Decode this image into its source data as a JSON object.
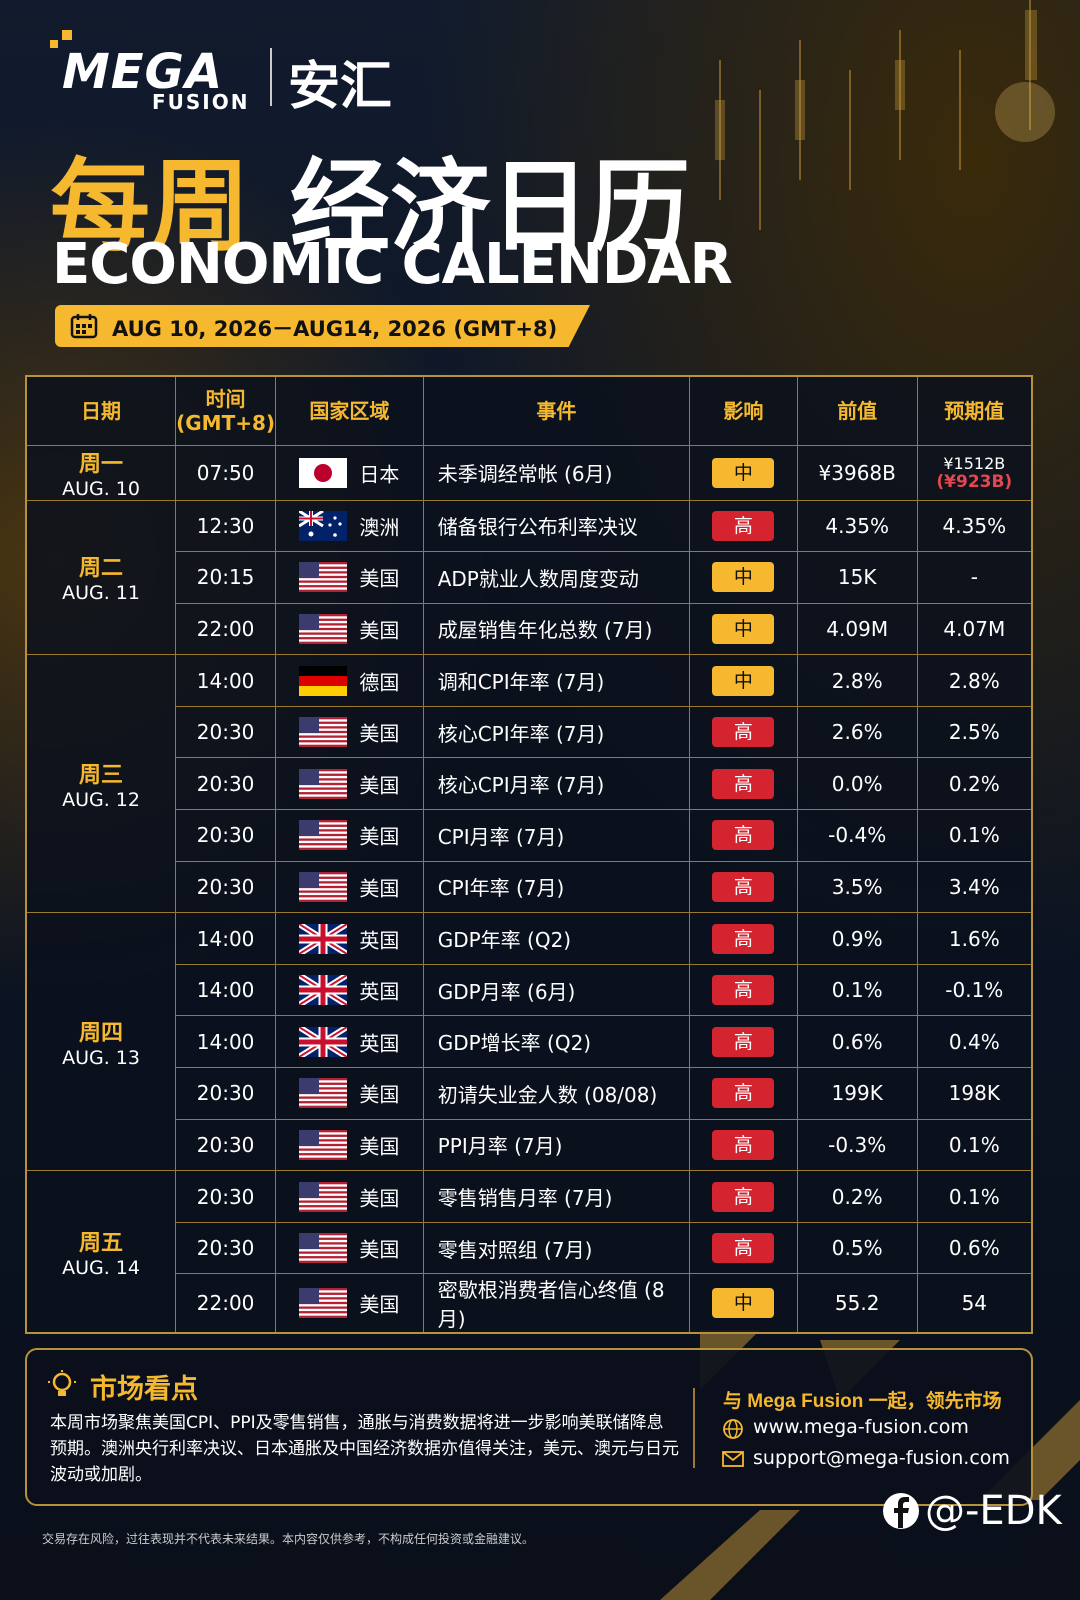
{
  "logo": {
    "brand": "MEGA",
    "sub": "FUSION",
    "cn": "安汇"
  },
  "title": {
    "highlight": "每周",
    "main": "经济日历",
    "english": "ECONOMIC CALENDAR",
    "date_range": "AUG 10, 2026－AUG14, 2026 (GMT+8)"
  },
  "table": {
    "columns": [
      "日期",
      "时间",
      "国家区域",
      "事件",
      "影响",
      "前值",
      "预期值"
    ],
    "time_zone": "(GMT+8)",
    "days": [
      {
        "day": "周一",
        "date": "AUG. 10",
        "events": [
          {
            "time": "07:50",
            "country": "日本",
            "event": "未季调经常帐 (6月)",
            "impact": "中",
            "impact_color": "#f5b82e",
            "previous": "¥3968B",
            "forecast": "¥1512B",
            "forecast_revised": "(¥923B)"
          }
        ]
      },
      {
        "day": "周二",
        "date": "AUG. 11",
        "events": [
          {
            "time": "12:30",
            "country": "澳洲",
            "event": "储备银行公布利率决议",
            "impact": "高",
            "impact_color": "#d32430",
            "previous": "4.35%",
            "forecast": "4.35%"
          },
          {
            "time": "20:15",
            "country": "美国",
            "event": "ADP就业人数周度变动",
            "impact": "中",
            "impact_color": "#f5b82e",
            "previous": "15K",
            "forecast": "-"
          },
          {
            "time": "22:00",
            "country": "美国",
            "event": "成屋销售年化总数 (7月)",
            "impact": "中",
            "impact_color": "#f5b82e",
            "previous": "4.09M",
            "forecast": "4.07M"
          }
        ]
      },
      {
        "day": "周三",
        "date": "AUG. 12",
        "events": [
          {
            "time": "14:00",
            "country": "德国",
            "event": "调和CPI年率 (7月)",
            "impact": "中",
            "impact_color": "#f5b82e",
            "previous": "2.8%",
            "forecast": "2.8%"
          },
          {
            "time": "20:30",
            "country": "美国",
            "event": "核心CPI年率 (7月)",
            "impact": "高",
            "impact_color": "#d32430",
            "previous": "2.6%",
            "forecast": "2.5%"
          },
          {
            "time": "20:30",
            "country": "美国",
            "event": "核心CPI月率 (7月)",
            "impact": "高",
            "impact_color": "#d32430",
            "previous": "0.0%",
            "forecast": "0.2%"
          },
          {
            "time": "20:30",
            "country": "美国",
            "event": "CPI月率 (7月)",
            "impact": "高",
            "impact_color": "#d32430",
            "previous": "-0.4%",
            "forecast": "0.1%"
          },
          {
            "time": "20:30",
            "country": "美国",
            "event": "CPI年率 (7月)",
            "impact": "高",
            "impact_color": "#d32430",
            "previous": "3.5%",
            "forecast": "3.4%"
          }
        ]
      },
      {
        "day": "周四",
        "date": "AUG. 13",
        "events": [
          {
            "time": "14:00",
            "country": "英国",
            "event": "GDP年率 (Q2)",
            "impact": "高",
            "impact_color": "#d32430",
            "previous": "0.9%",
            "forecast": "1.6%"
          },
          {
            "time": "14:00",
            "country": "英国",
            "event": "GDP月率 (6月)",
            "impact": "高",
            "impact_color": "#d32430",
            "previous": "0.1%",
            "forecast": "-0.1%"
          },
          {
            "time": "14:00",
            "country": "英国",
            "event": "GDP增长率 (Q2)",
            "impact": "高",
            "impact_color": "#d32430",
            "previous": "0.6%",
            "forecast": "0.4%"
          },
          {
            "time": "20:30",
            "country": "美国",
            "event": "初请失业金人数 (08/08)",
            "impact": "高",
            "impact_color": "#d32430",
            "previous": "199K",
            "forecast": "198K"
          },
          {
            "time": "20:30",
            "country": "美国",
            "event": "PPI月率 (7月)",
            "impact": "高",
            "impact_color": "#d32430",
            "previous": "-0.3%",
            "forecast": "0.1%"
          }
        ]
      },
      {
        "day": "周五",
        "date": "AUG. 14",
        "events": [
          {
            "time": "20:30",
            "country": "美国",
            "event": "零售销售月率 (7月)",
            "impact": "高",
            "impact_color": "#d32430",
            "previous": "0.2%",
            "forecast": "0.1%"
          },
          {
            "time": "20:30",
            "country": "美国",
            "event": "零售对照组 (7月)",
            "impact": "高",
            "impact_color": "#d32430",
            "previous": "0.5%",
            "forecast": "0.6%"
          },
          {
            "time": "22:00",
            "country": "美国",
            "event": "密歇根消费者信心终值 (8月)",
            "impact": "中",
            "impact_color": "#f5b82e",
            "previous": "55.2",
            "forecast": "54"
          }
        ]
      }
    ]
  },
  "outlook": {
    "title": "市场看点",
    "body": "本周市场聚焦美国CPI、PPI及零售销售，通胀与消费数据将进一步影响美联储降息预期。澳洲央行利率决议、日本通胀及中国经济数据亦值得关注，美元、澳元与日元波动或加剧。",
    "slogan": "与 Mega Fusion 一起，领先市场",
    "website": "www.mega-fusion.com",
    "email": "support@mega-fusion.com"
  },
  "watermark": "@-EDK",
  "disclaimer": "交易存在风险，过往表现并不代表未来结果。本内容仅供参考，不构成任何投资或金融建议。"
}
